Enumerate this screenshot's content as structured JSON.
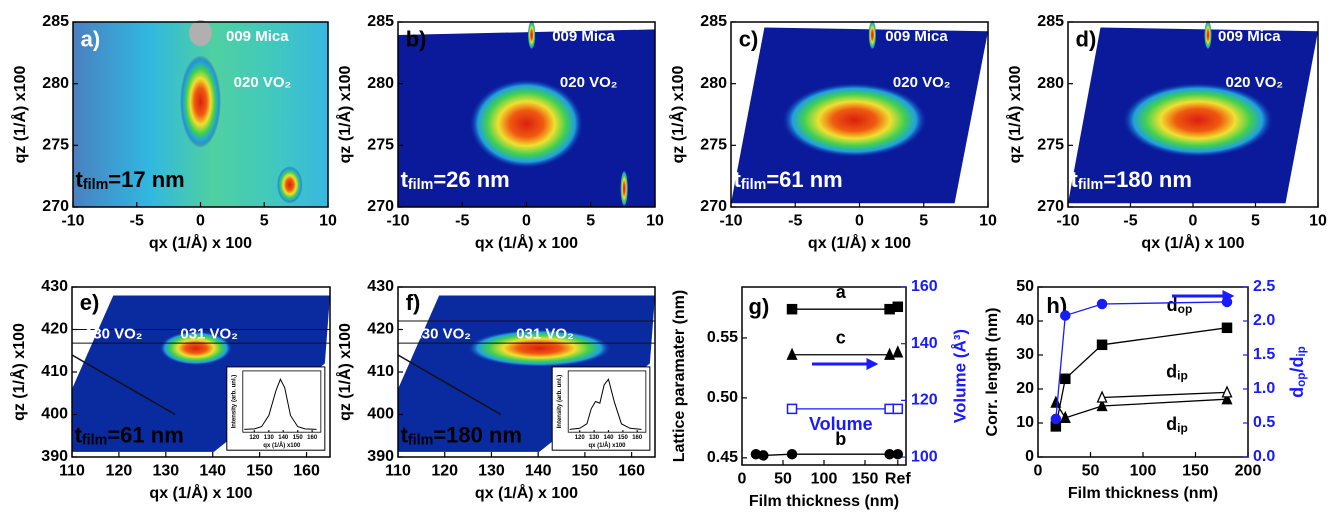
{
  "chart_data": [
    {
      "type": "map",
      "panel_label": "a)",
      "xlabel": "qx (1/Å) x 100",
      "ylabel": "qz (1/Å) x100",
      "xlim": [
        -10,
        10
      ],
      "xticks": [
        -10,
        -5,
        0,
        5,
        10
      ],
      "ylim": [
        270,
        285
      ],
      "yticks": [
        270,
        275,
        280,
        285
      ],
      "annotations": [
        "009 Mica",
        "020 VO₂"
      ],
      "thickness_label": [
        "t",
        "film",
        "=17 nm"
      ]
    },
    {
      "type": "map",
      "panel_label": "b)",
      "xlabel": "qx (1/Å) x 100",
      "ylabel": "qz (1/Å) x100",
      "xlim": [
        -10,
        10
      ],
      "xticks": [
        -10,
        -5,
        0,
        5,
        10
      ],
      "ylim": [
        270,
        285
      ],
      "yticks": [
        270,
        275,
        280,
        285
      ],
      "annotations": [
        "009 Mica",
        "020 VO₂"
      ],
      "thickness_label": [
        "t",
        "film",
        "=26 nm"
      ]
    },
    {
      "type": "map",
      "panel_label": "c)",
      "xlabel": "qx (1/Å) x 100",
      "ylabel": "qz (1/Å) x100",
      "xlim": [
        -10,
        10
      ],
      "xticks": [
        -10,
        -5,
        0,
        5,
        10
      ],
      "ylim": [
        270,
        285
      ],
      "yticks": [
        270,
        275,
        280,
        285
      ],
      "annotations": [
        "009 Mica",
        "020 VO₂"
      ],
      "thickness_label": [
        "t",
        "film",
        "=61 nm"
      ]
    },
    {
      "type": "map",
      "panel_label": "d)",
      "xlabel": "qx (1/Å) x 100",
      "ylabel": "qz (1/Å) x100",
      "xlim": [
        -10,
        10
      ],
      "xticks": [
        -10,
        -5,
        0,
        5,
        10
      ],
      "ylim": [
        270,
        285
      ],
      "yticks": [
        270,
        275,
        280,
        285
      ],
      "annotations": [
        "009 Mica",
        "020 VO₂"
      ],
      "thickness_label": [
        "t",
        "film",
        "=180 nm"
      ]
    },
    {
      "type": "map",
      "panel_label": "e)",
      "xlabel": "qx (1/Å) x 100",
      "ylabel": "qz (1/Å) x100",
      "xlim": [
        110,
        165
      ],
      "xticks": [
        110,
        120,
        130,
        140,
        150,
        160
      ],
      "ylim": [
        390,
        430
      ],
      "yticks": [
        390,
        400,
        410,
        420,
        430
      ],
      "annotations": [
        "130 VO₂",
        "031 VO₂"
      ],
      "thickness_label": [
        "t",
        "film",
        "=61 nm"
      ],
      "inset": {
        "xlabel": "qx (1/Å) x100",
        "ylabel": "Intensity (arb. unl.)",
        "xlim": [
          112,
          166
        ],
        "xticks": [
          120,
          130,
          140,
          150,
          160
        ],
        "ylim": [
          0,
          1.1
        ],
        "x": [
          113,
          120,
          125,
          130,
          135,
          138,
          141,
          145,
          150,
          155,
          163
        ],
        "values": [
          0.05,
          0.06,
          0.1,
          0.3,
          0.75,
          0.95,
          0.8,
          0.3,
          0.1,
          0.06,
          0.05
        ]
      }
    },
    {
      "type": "map",
      "panel_label": "f)",
      "xlabel": "qx (1/Å) x 100",
      "ylabel": "qz (1/Å) x100",
      "xlim": [
        110,
        165
      ],
      "xticks": [
        110,
        120,
        130,
        140,
        150,
        160
      ],
      "ylim": [
        390,
        430
      ],
      "yticks": [
        390,
        400,
        410,
        420,
        430
      ],
      "annotations": [
        "130 VO₂",
        "031 VO₂"
      ],
      "thickness_label": [
        "t",
        "film",
        "=180 nm"
      ],
      "inset": {
        "xlabel": "qx (1/Å) x100",
        "ylabel": "Intensity (arb. unl.)",
        "xlim": [
          112,
          166
        ],
        "xticks": [
          120,
          130,
          140,
          150,
          160
        ],
        "ylim": [
          0,
          1.1
        ],
        "x": [
          113,
          120,
          125,
          128,
          131,
          134,
          137,
          140,
          144,
          149,
          155,
          163
        ],
        "values": [
          0.05,
          0.07,
          0.15,
          0.42,
          0.55,
          0.52,
          0.85,
          0.95,
          0.55,
          0.15,
          0.07,
          0.05
        ]
      }
    },
    {
      "type": "scatter",
      "panel_label": "g)",
      "xlabel": "Film thickness (nm)",
      "ylabel": "Lattice paramater (nm)",
      "y2label": "Volume (Å³)",
      "xlim": [
        0,
        200
      ],
      "xticks": [
        0,
        50,
        100,
        150,
        {
          "value": 190,
          "label": "Ref"
        }
      ],
      "ylim": [
        0.444,
        0.5925
      ],
      "yticks": [
        0.45,
        {
          "value": 0.5,
          "label": "0.50"
        },
        0.55
      ],
      "y2lim": [
        97.2,
        160
      ],
      "y2ticks": [
        100,
        120,
        140,
        160
      ],
      "series": [
        {
          "name": "a",
          "color": "#000000",
          "marker": "square",
          "x": [
            61,
            180
          ],
          "values": [
            0.574,
            0.574
          ],
          "ref": 0.576
        },
        {
          "name": "c",
          "color": "#000000",
          "marker": "triangle",
          "x": [
            61,
            180
          ],
          "values": [
            0.536,
            0.536
          ],
          "ref": 0.538
        },
        {
          "name": "b",
          "color": "#000000",
          "marker": "circle",
          "x": [
            17,
            26,
            61,
            180
          ],
          "values": [
            0.453,
            0.452,
            0.453,
            0.453
          ],
          "ref": 0.453
        },
        {
          "name": "Volume",
          "color": "#1a1aff",
          "marker": "square-open",
          "axis": "y2",
          "x": [
            61,
            180
          ],
          "values": [
            117,
            117
          ],
          "ref": 117
        }
      ]
    },
    {
      "type": "scatter",
      "panel_label": "h)",
      "xlabel": "Film thickness (nm)",
      "ylabel": "Corr. length (nm)",
      "y2label": [
        "d",
        "op",
        "/d",
        "ip"
      ],
      "xlim": [
        0,
        200
      ],
      "xticks": [
        0,
        50,
        100,
        150,
        200
      ],
      "ylim": [
        0,
        50
      ],
      "yticks": [
        0,
        10,
        20,
        30,
        40,
        50
      ],
      "y2lim": [
        0,
        2.5
      ],
      "y2ticks": [
        {
          "value": 0,
          "label": "0.0"
        },
        0.5,
        {
          "value": 1,
          "label": "1.0"
        },
        1.5,
        {
          "value": 2,
          "label": "2.0"
        },
        2.5
      ],
      "series": [
        {
          "name": "d",
          "subscript": "op",
          "color": "#000000",
          "marker": "square",
          "x": [
            17,
            26,
            61,
            180
          ],
          "values": [
            9,
            23,
            33,
            38
          ]
        },
        {
          "name": "d",
          "subscript": "ip",
          "color": "#000000",
          "marker": "triangle",
          "x": [
            17,
            26,
            61,
            180
          ],
          "values": [
            16,
            11.5,
            15,
            17
          ]
        },
        {
          "name": "d",
          "subscript": "ip",
          "color": "#000000",
          "marker": "triangle-open",
          "x": [
            61,
            180
          ],
          "values": [
            17.5,
            19
          ]
        },
        {
          "color": "#1a1aff",
          "marker": "circle",
          "axis": "y2",
          "x": [
            17,
            26,
            61,
            180
          ],
          "values": [
            0.56,
            2.08,
            2.25,
            2.28
          ]
        }
      ]
    }
  ]
}
